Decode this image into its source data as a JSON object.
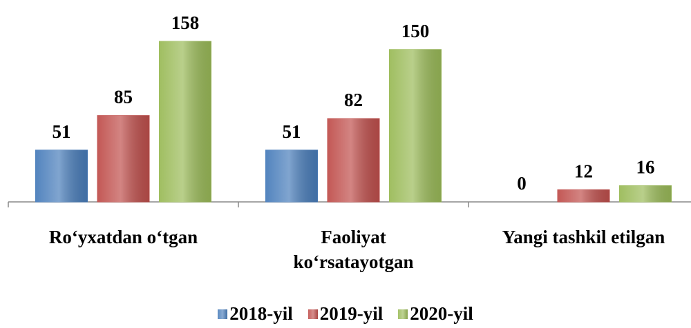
{
  "chart_data": {
    "type": "bar",
    "categories": [
      "Ro‘yxatdan o‘tgan",
      "Faoliyat ko‘rsatayotgan",
      "Yangi tashkil etilgan"
    ],
    "series": [
      {
        "name": "2018-yil",
        "color": "#4a7ebb",
        "values": [
          51,
          51,
          0
        ]
      },
      {
        "name": "2019-yil",
        "color": "#c0504d",
        "values": [
          85,
          82,
          12
        ]
      },
      {
        "name": "2020-yil",
        "color": "#9bbb59",
        "values": [
          158,
          150,
          16
        ]
      }
    ],
    "legend": "bottom"
  }
}
